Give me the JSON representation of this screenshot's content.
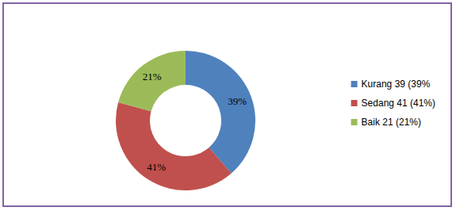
{
  "chart_data": {
    "type": "pie",
    "categories": [
      "Kurang 39 (39%",
      "Sedang 41 (41%)",
      "Baik 21 (21%)"
    ],
    "values": [
      39,
      41,
      21
    ],
    "value_labels": [
      "39%",
      "41%",
      "21%"
    ],
    "colors": [
      "#4f81bd",
      "#c0504d",
      "#9bbb59"
    ],
    "data_labels": true,
    "legend": "right"
  }
}
